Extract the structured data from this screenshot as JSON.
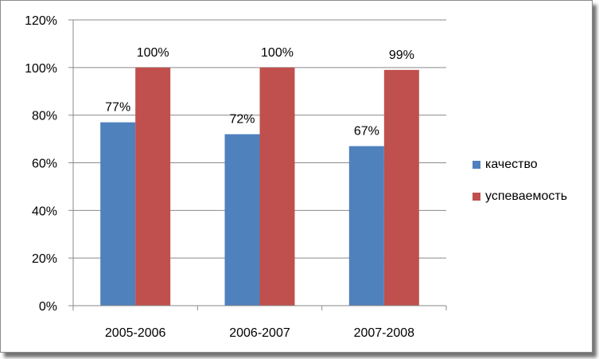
{
  "chart_data": {
    "type": "bar",
    "title": "",
    "xlabel": "",
    "ylabel": "",
    "categories": [
      "2005-2006",
      "2006-2007",
      "2007-2008"
    ],
    "series": [
      {
        "name": "качество",
        "values": [
          77,
          72,
          67
        ],
        "labels": [
          "77%",
          "72%",
          "67%"
        ],
        "color": "#4f81bd"
      },
      {
        "name": "успеваемость",
        "values": [
          100,
          100,
          99
        ],
        "labels": [
          "100%",
          "100%",
          "99%"
        ],
        "color": "#c0504d"
      }
    ],
    "ylim": [
      0,
      120
    ],
    "yticks": [
      0,
      20,
      40,
      60,
      80,
      100,
      120
    ],
    "ytick_labels": [
      "0%",
      "20%",
      "40%",
      "60%",
      "80%",
      "100%",
      "120%"
    ],
    "grid": true,
    "legend": "right"
  }
}
